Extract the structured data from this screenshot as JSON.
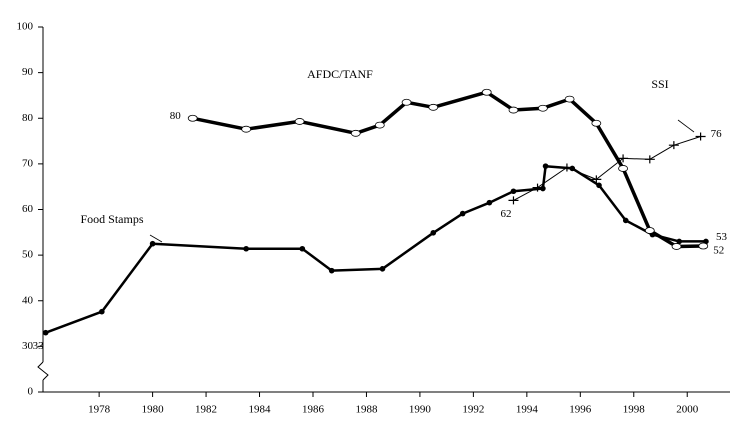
{
  "chart_data": {
    "type": "line",
    "xlim": [
      1975.9,
      2001.6
    ],
    "xticks": [
      1978,
      1980,
      1982,
      1984,
      1986,
      1988,
      1990,
      1992,
      1994,
      1996,
      1998,
      2000
    ],
    "ylim": [
      20,
      100
    ],
    "yticks": [
      {
        "value": 20,
        "label": "0"
      },
      30,
      40,
      50,
      60,
      70,
      80,
      90,
      100
    ],
    "axis_break": true,
    "series": [
      {
        "name": "Food Stamps",
        "color": "#000000",
        "marker": "dot",
        "x": [
          1976.0,
          1978.1,
          1980.0,
          1983.5,
          1985.6,
          1986.7,
          1988.6,
          1990.5,
          1991.6,
          1992.6,
          1993.5,
          1994.6,
          1994.7,
          1995.7,
          1996.7,
          1997.7,
          1998.7,
          1999.7,
          2000.7
        ],
        "values": [
          33,
          37.6,
          52.5,
          51.4,
          51.4,
          46.6,
          47.0,
          54.9,
          59.1,
          61.5,
          64.0,
          64.6,
          69.5,
          69.0,
          65.3,
          57.6,
          54.5,
          53.0,
          53
        ],
        "value_labels": [
          "33",
          null,
          null,
          null,
          null,
          null,
          null,
          null,
          null,
          null,
          null,
          null,
          null,
          null,
          null,
          null,
          null,
          null,
          "53"
        ]
      },
      {
        "name": "AFDC/TANF",
        "color": "#000000",
        "marker": "circle",
        "x": [
          1981.5,
          1983.5,
          1985.5,
          1987.6,
          1988.5,
          1989.5,
          1990.5,
          1992.5,
          1993.5,
          1994.6,
          1995.6,
          1996.6,
          1997.6,
          1998.6,
          1999.6,
          2000.6
        ],
        "values": [
          80,
          77.6,
          79.3,
          76.7,
          78.5,
          83.5,
          82.4,
          85.7,
          81.8,
          82.2,
          84.2,
          78.9,
          69.0,
          55.4,
          51.9,
          52
        ],
        "value_labels": [
          "80",
          null,
          null,
          null,
          null,
          null,
          null,
          null,
          null,
          null,
          null,
          null,
          null,
          null,
          null,
          "52"
        ]
      },
      {
        "name": "SSI",
        "color": "#000000",
        "marker": "plus",
        "x": [
          1993.5,
          1994.4,
          1995.5,
          1996.6,
          1997.6,
          1998.6,
          1999.5,
          2000.5
        ],
        "values": [
          62,
          64.8,
          69.2,
          66.6,
          71.2,
          71.0,
          74.1,
          76
        ],
        "value_labels": [
          "62",
          null,
          null,
          null,
          null,
          null,
          null,
          "76"
        ]
      }
    ]
  }
}
